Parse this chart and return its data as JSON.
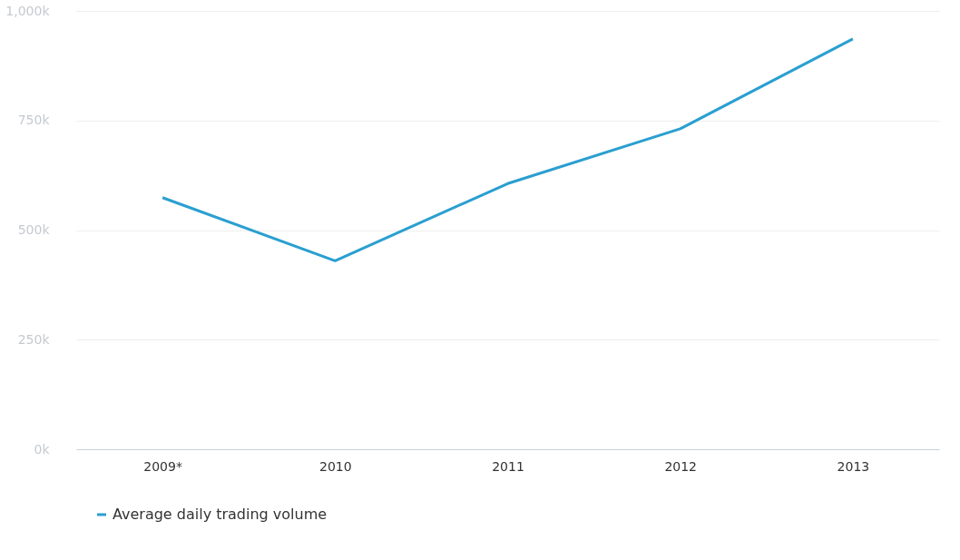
{
  "chart_data": {
    "type": "line",
    "categories": [
      "2009*",
      "2010",
      "2011",
      "2012",
      "2013"
    ],
    "series": [
      {
        "name": "Average daily trading volume",
        "color": "#2a9fd0",
        "values": [
          574000,
          430000,
          606000,
          731000,
          936000
        ]
      }
    ],
    "ylim": [
      0,
      1000000
    ],
    "yticks": [
      {
        "value": 0,
        "label": "0k"
      },
      {
        "value": 250000,
        "label": "250k"
      },
      {
        "value": 500000,
        "label": "500k"
      },
      {
        "value": 750000,
        "label": "750k"
      },
      {
        "value": 1000000,
        "label": "1,000k"
      }
    ],
    "grid": "y",
    "legend": "bottom",
    "marker": "none",
    "line_style": "solid"
  }
}
